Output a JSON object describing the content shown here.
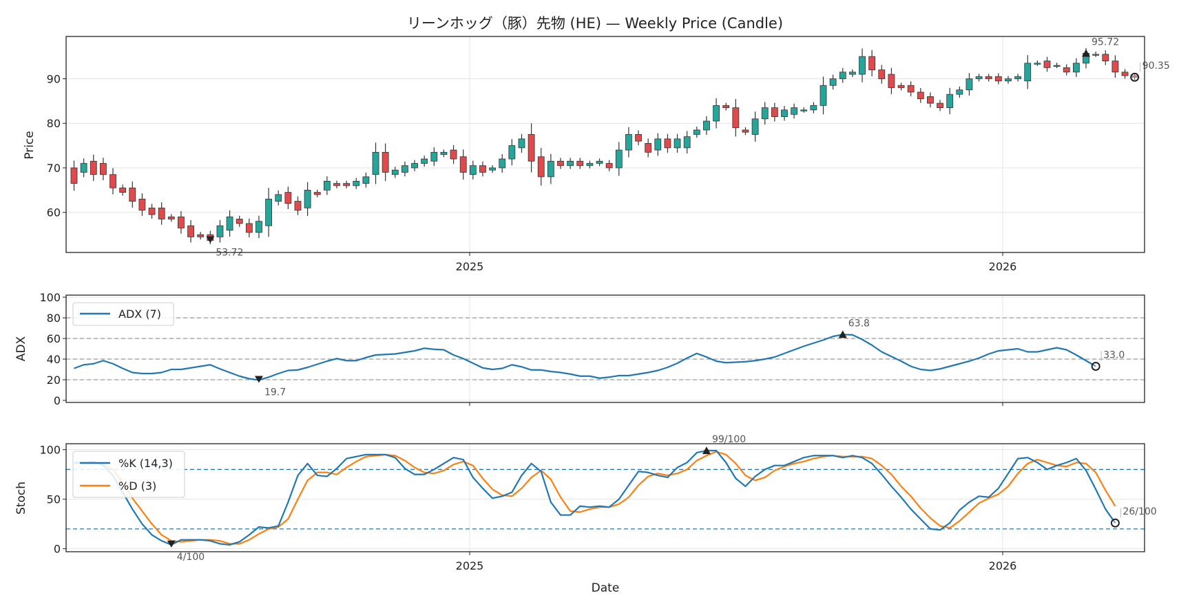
{
  "chart_data": {
    "type": "line",
    "title": "リーンホッグ（豚）先物 (HE) — Weekly Price (Candle)",
    "xlabel": "Date",
    "x_ticks": [
      "2025",
      "2026"
    ],
    "colors": {
      "up": "#26a69a",
      "down": "#e04a4a",
      "adx": "#1f77b4",
      "k": "#1f77b4",
      "d": "#ff7f0e"
    },
    "price": {
      "ylabel": "Price",
      "ylim": [
        51,
        99.5
      ],
      "yticks": [
        60,
        70,
        80,
        90
      ],
      "candles": [
        [
          70,
          66.5
        ],
        [
          69,
          71
        ],
        [
          71.5,
          68.5
        ],
        [
          71,
          68.5
        ],
        [
          68.5,
          65.5
        ],
        [
          65.5,
          64.5
        ],
        [
          65.5,
          62.5
        ],
        [
          63,
          60.5
        ],
        [
          61,
          59.5
        ],
        [
          61,
          58.5
        ],
        [
          59,
          58.5
        ],
        [
          59,
          56.5
        ],
        [
          57,
          54.5
        ],
        [
          55,
          54.5
        ],
        [
          55,
          53.7
        ],
        [
          54.5,
          57
        ],
        [
          56,
          59
        ],
        [
          58.5,
          57.5
        ],
        [
          57.5,
          55.5
        ],
        [
          55.5,
          58
        ],
        [
          57,
          63
        ],
        [
          62.5,
          64
        ],
        [
          64.5,
          62
        ],
        [
          62.5,
          60.5
        ],
        [
          61,
          65
        ],
        [
          64.5,
          64
        ],
        [
          65,
          67
        ],
        [
          66.5,
          66
        ],
        [
          66.5,
          66
        ],
        [
          66,
          67
        ],
        [
          66.5,
          68
        ],
        [
          68.5,
          73.5
        ],
        [
          73.5,
          69
        ],
        [
          68.5,
          69.5
        ],
        [
          69,
          70.5
        ],
        [
          70,
          71
        ],
        [
          71,
          72
        ],
        [
          71.5,
          73.5
        ],
        [
          73,
          73.5
        ],
        [
          74,
          72
        ],
        [
          72.5,
          69
        ],
        [
          68.5,
          70.5
        ],
        [
          70.5,
          69
        ],
        [
          69.5,
          70
        ],
        [
          70,
          72
        ],
        [
          72,
          75
        ],
        [
          74.5,
          76.5
        ],
        [
          77.5,
          71.5
        ],
        [
          72.5,
          68
        ],
        [
          68,
          71.5
        ],
        [
          71.5,
          70.5
        ],
        [
          70.5,
          71.5
        ],
        [
          71.5,
          70.5
        ],
        [
          70.5,
          71
        ],
        [
          71,
          71.5
        ],
        [
          71,
          70
        ],
        [
          70,
          74
        ],
        [
          74,
          77.5
        ],
        [
          77.5,
          76
        ],
        [
          75.5,
          73.5
        ],
        [
          74,
          76.5
        ],
        [
          76.5,
          74.5
        ],
        [
          74.5,
          76.5
        ],
        [
          74.5,
          77
        ],
        [
          77.5,
          78.5
        ],
        [
          78.5,
          80.5
        ],
        [
          80.5,
          84
        ],
        [
          84,
          83.5
        ],
        [
          83.5,
          79
        ],
        [
          78.5,
          78
        ],
        [
          77.5,
          81
        ],
        [
          81,
          83.5
        ],
        [
          83.5,
          81.5
        ],
        [
          81.5,
          83
        ],
        [
          82,
          83.5
        ],
        [
          83,
          83
        ],
        [
          83,
          84
        ],
        [
          84,
          88.5
        ],
        [
          88.5,
          90
        ],
        [
          90,
          91.5
        ],
        [
          91,
          91.5
        ],
        [
          91,
          95
        ],
        [
          95,
          92
        ],
        [
          92,
          90
        ],
        [
          91,
          88
        ],
        [
          88.5,
          88
        ],
        [
          88.5,
          87
        ],
        [
          87,
          85.5
        ],
        [
          86,
          84.5
        ],
        [
          84.5,
          83.5
        ],
        [
          83.5,
          86.5
        ],
        [
          86.5,
          87.5
        ],
        [
          87.5,
          90
        ],
        [
          90,
          90.5
        ],
        [
          90.5,
          90
        ],
        [
          90.5,
          89.5
        ],
        [
          89.5,
          90
        ],
        [
          90,
          90.5
        ],
        [
          89.5,
          93.5
        ],
        [
          93.5,
          93.5
        ],
        [
          94,
          92.5
        ],
        [
          93,
          93
        ],
        [
          92.5,
          91.5
        ],
        [
          91.5,
          93.5
        ],
        [
          93.5,
          95.72
        ],
        [
          95.5,
          95.5
        ],
        [
          95.5,
          94
        ],
        [
          94,
          91.5
        ],
        [
          91.5,
          90.7
        ],
        [
          90.7,
          90.35
        ]
      ],
      "annotations": {
        "low": "53.72",
        "high": "95.72",
        "last": "90.35"
      }
    },
    "adx": {
      "ylabel": "ADX",
      "ylim": [
        -2,
        102
      ],
      "yticks": [
        0,
        20,
        40,
        60,
        80,
        100
      ],
      "hlines": [
        20,
        40,
        60,
        80
      ],
      "legend": "ADX (7)",
      "values": [
        31,
        34.5,
        35.5,
        38.5,
        35.5,
        31,
        27,
        26,
        26,
        27,
        30,
        30,
        31.5,
        33,
        34.5,
        30.5,
        27,
        23.5,
        21,
        19.7,
        22.5,
        26,
        29,
        29.5,
        32,
        35,
        38,
        40.5,
        38.5,
        38.5,
        41.5,
        44,
        44.5,
        45,
        46.5,
        48,
        50.5,
        49.5,
        49,
        44,
        40.5,
        36,
        31.5,
        30,
        31,
        34.5,
        32.5,
        29.5,
        29.5,
        28,
        27,
        25.5,
        23.5,
        23.5,
        21.5,
        22.5,
        24,
        24,
        25.5,
        27,
        29,
        32,
        36,
        41,
        45.5,
        42,
        38,
        36.5,
        37,
        37.5,
        38.5,
        40,
        42,
        45.5,
        49,
        52.5,
        55.5,
        58.5,
        62,
        63.8,
        63.5,
        59,
        53.5,
        47,
        42.5,
        38,
        33,
        30,
        29,
        30.5,
        33,
        35.5,
        38,
        41,
        45,
        48,
        49,
        50,
        47,
        47,
        49,
        51,
        49,
        44,
        38.5,
        33
      ],
      "annotations": {
        "low": "19.7",
        "high": "63.8",
        "last": "33.0"
      }
    },
    "stoch": {
      "ylabel": "Stoch",
      "ylim": [
        -3,
        106
      ],
      "yticks": [
        0,
        50,
        100
      ],
      "hlines": [
        80,
        20
      ],
      "series": [
        {
          "name": "%K (14,3)",
          "values": [
            87,
            87,
            88,
            84,
            74,
            57,
            40,
            25,
            14,
            8,
            4,
            9,
            9,
            9,
            8,
            5,
            4,
            7,
            14,
            22,
            21,
            23,
            47,
            74,
            86,
            74,
            73,
            81,
            91,
            93,
            95,
            95,
            95,
            92,
            81,
            75,
            75,
            80,
            86,
            92,
            90,
            72,
            61,
            51,
            53,
            57,
            74,
            86,
            78,
            47,
            34,
            34,
            43,
            42,
            43,
            42,
            50,
            64,
            78,
            77,
            74,
            72,
            82,
            87,
            97,
            99,
            99,
            87,
            71,
            63,
            73,
            80,
            84,
            84,
            88,
            92,
            94,
            94,
            94,
            92,
            94,
            92,
            86,
            75,
            63,
            52,
            40,
            30,
            20,
            19,
            26,
            39,
            47,
            53,
            52,
            61,
            76,
            91,
            92,
            87,
            80,
            84,
            87,
            91,
            79,
            60,
            40,
            26
          ]
        },
        {
          "name": "%D (3)",
          "values": [
            86,
            87,
            87,
            85,
            80,
            67,
            51,
            38,
            25,
            14,
            8,
            7,
            8,
            9,
            9,
            8,
            5,
            5,
            9,
            15,
            20,
            22,
            30,
            50,
            69,
            77,
            77,
            75,
            82,
            88,
            93,
            94,
            95,
            94,
            89,
            82,
            77,
            76,
            79,
            85,
            88,
            84,
            71,
            60,
            54,
            53,
            61,
            72,
            79,
            70,
            52,
            38,
            37,
            40,
            42,
            42,
            45,
            52,
            64,
            73,
            76,
            74,
            76,
            80,
            89,
            94,
            98,
            95,
            86,
            74,
            69,
            72,
            79,
            83,
            86,
            88,
            91,
            93,
            94,
            93,
            93,
            93,
            91,
            84,
            75,
            63,
            53,
            41,
            31,
            23,
            21,
            28,
            37,
            46,
            51,
            55,
            63,
            76,
            86,
            90,
            87,
            84,
            83,
            87,
            86,
            77,
            59,
            43
          ]
        }
      ],
      "annotations": {
        "low": "4/100",
        "high": "99/100",
        "last": "26/100"
      }
    }
  }
}
